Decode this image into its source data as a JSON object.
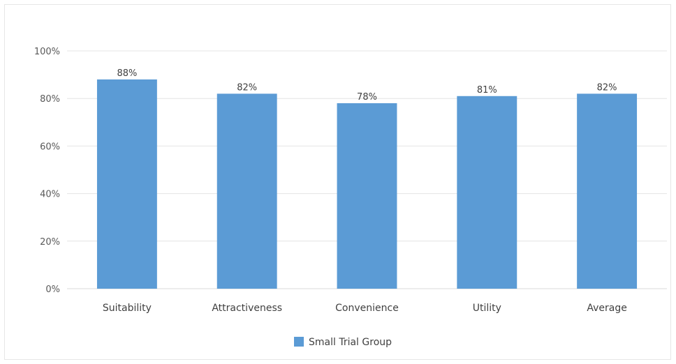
{
  "chart_data": {
    "type": "bar",
    "categories": [
      "Suitability",
      "Attractiveness",
      "Convenience",
      "Utility",
      "Average"
    ],
    "series": [
      {
        "name": "Small Trial Group",
        "values": [
          88,
          82,
          78,
          81,
          82
        ],
        "color": "#5b9bd5"
      }
    ],
    "data_labels": [
      "88%",
      "82%",
      "78%",
      "81%",
      "82%"
    ],
    "yticks": [
      "0%",
      "20%",
      "40%",
      "60%",
      "80%",
      "100%"
    ],
    "ylim": [
      0,
      100
    ],
    "grid": true,
    "legend_position": "bottom"
  }
}
